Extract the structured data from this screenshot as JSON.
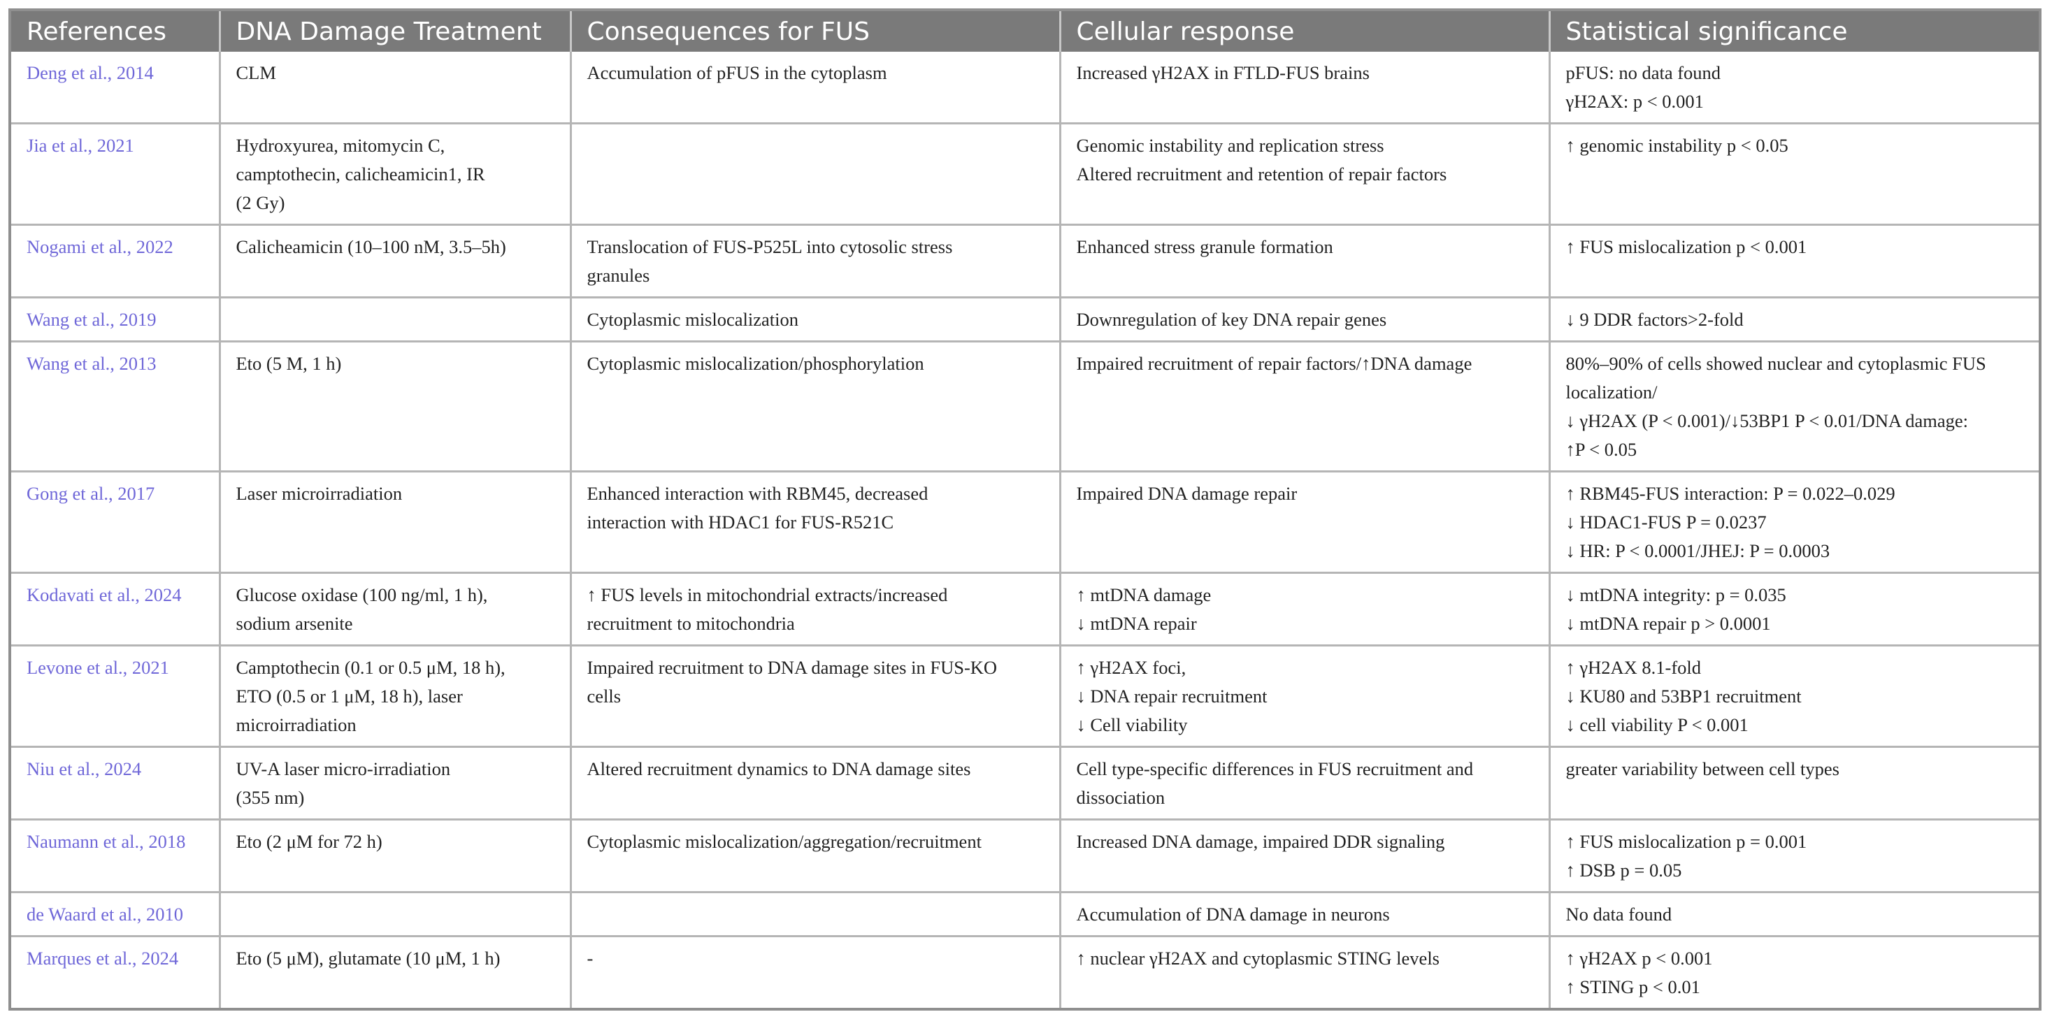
{
  "headers": [
    "References",
    "DNA Damage Treatment",
    "Consequences for FUS",
    "Cellular response",
    "Statistical significance"
  ],
  "rows": [
    {
      "ref": "Deng et al., 2014",
      "treatment": [
        "CLM"
      ],
      "consequences": [
        "Accumulation of pFUS in the cytoplasm"
      ],
      "response": [
        "Increased γH2AX in FTLD-FUS brains"
      ],
      "significance": [
        "pFUS: no data found",
        "γH2AX: p < 0.001"
      ]
    },
    {
      "ref": "Jia et al., 2021",
      "treatment": [
        "Hydroxyurea, mitomycin C,",
        "camptothecin, calicheamicin1, IR",
        "(2 Gy)"
      ],
      "consequences": [],
      "response": [
        "Genomic instability and replication stress",
        "Altered recruitment and retention of repair factors"
      ],
      "significance": [
        "↑ genomic instability p < 0.05"
      ]
    },
    {
      "ref": "Nogami et al., 2022",
      "treatment": [
        "Calicheamicin (10–100 nM, 3.5–5h)"
      ],
      "consequences": [
        "Translocation of FUS-P525L into cytosolic stress",
        "granules"
      ],
      "response": [
        "Enhanced stress granule formation"
      ],
      "significance": [
        "↑ FUS mislocalization p < 0.001"
      ]
    },
    {
      "ref": "Wang et al., 2019",
      "treatment": [],
      "consequences": [
        "Cytoplasmic mislocalization"
      ],
      "response": [
        "Downregulation of key DNA repair genes"
      ],
      "significance": [
        "↓ 9 DDR factors>2-fold"
      ]
    },
    {
      "ref": "Wang et al., 2013",
      "treatment": [
        "Eto (5 M, 1 h)"
      ],
      "consequences": [
        "Cytoplasmic mislocalization/phosphorylation"
      ],
      "response": [
        "Impaired recruitment of repair factors/↑DNA damage"
      ],
      "significance": [
        "80%–90% of cells showed nuclear and cytoplasmic FUS",
        "localization/",
        "↓ γH2AX (P < 0.001)/↓53BP1 P < 0.01/DNA damage:",
        "↑P < 0.05"
      ]
    },
    {
      "ref": "Gong et al., 2017",
      "treatment": [
        "Laser microirradiation"
      ],
      "consequences": [
        "Enhanced interaction with RBM45, decreased",
        "interaction with HDAC1 for FUS-R521C"
      ],
      "response": [
        "Impaired DNA damage repair"
      ],
      "significance": [
        "↑ RBM45-FUS interaction: P = 0.022–0.029",
        "↓ HDAC1-FUS P = 0.0237",
        "↓ HR: P < 0.0001/JHEJ: P = 0.0003"
      ]
    },
    {
      "ref": "Kodavati et al., 2024",
      "treatment": [
        "Glucose oxidase (100 ng/ml, 1 h),",
        "sodium arsenite"
      ],
      "consequences": [
        "↑ FUS levels in mitochondrial extracts/increased",
        "recruitment to mitochondria"
      ],
      "response": [
        "↑ mtDNA damage",
        "↓ mtDNA repair"
      ],
      "significance": [
        "↓ mtDNA integrity: p = 0.035",
        "↓ mtDNA repair p > 0.0001"
      ]
    },
    {
      "ref": "Levone et al., 2021",
      "treatment": [
        "Camptothecin (0.1 or 0.5 μM, 18 h),",
        "ETO (0.5 or 1 μM, 18 h), laser",
        "microirradiation"
      ],
      "consequences": [
        "Impaired recruitment to DNA damage sites in FUS-KO",
        "cells"
      ],
      "response": [
        "↑ γH2AX foci,",
        "↓ DNA repair recruitment",
        "↓ Cell viability"
      ],
      "significance": [
        "↑ γH2AX 8.1-fold",
        "↓ KU80 and 53BP1 recruitment",
        "↓ cell viability P < 0.001"
      ]
    },
    {
      "ref": "Niu et al., 2024",
      "treatment": [
        "UV-A laser micro-irradiation",
        "(355 nm)"
      ],
      "consequences": [
        "Altered recruitment dynamics to DNA damage sites"
      ],
      "response": [
        "Cell type-specific differences in FUS recruitment and",
        "dissociation"
      ],
      "significance": [
        "greater variability between cell types"
      ]
    },
    {
      "ref": "Naumann et al., 2018",
      "treatment": [
        "Eto (2 μM for 72 h)"
      ],
      "consequences": [
        "Cytoplasmic mislocalization/aggregation/recruitment"
      ],
      "response": [
        "Increased DNA damage, impaired DDR signaling"
      ],
      "significance": [
        "↑ FUS mislocalization p = 0.001",
        "↑ DSB p = 0.05"
      ]
    },
    {
      "ref": "de Waard et al., 2010",
      "treatment": [],
      "consequences": [],
      "response": [
        "Accumulation of DNA damage in neurons"
      ],
      "significance": [
        "No data found"
      ]
    },
    {
      "ref": "Marques et al., 2024",
      "treatment": [
        "Eto (5 μM), glutamate (10 μM, 1 h)"
      ],
      "consequences": [
        "-"
      ],
      "response": [
        "↑ nuclear γH2AX and cytoplasmic STING levels"
      ],
      "significance": [
        "↑ γH2AX p < 0.001",
        "↑ STING p < 0.01"
      ]
    }
  ]
}
